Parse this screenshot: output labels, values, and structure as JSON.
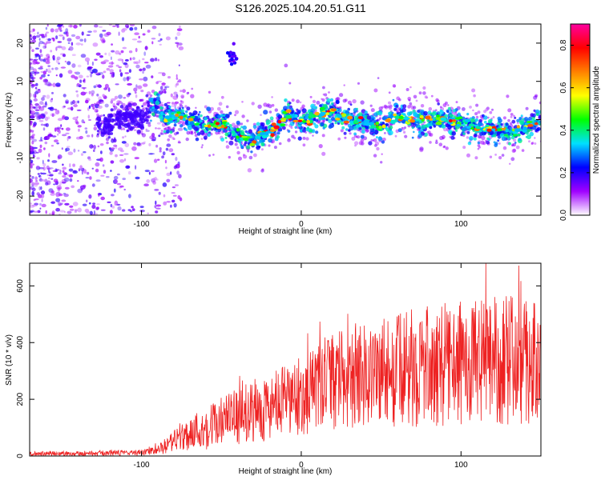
{
  "title": "S126.2025.104.20.51.G11",
  "chart_data": [
    {
      "type": "heatmap",
      "xlabel": "Height of straight line (km)",
      "ylabel": "Frequency (Hz)",
      "xlim": [
        -170,
        150
      ],
      "ylim": [
        -25,
        25
      ],
      "xticks": [
        -100,
        0,
        100
      ],
      "yticks": [
        -20,
        -10,
        0,
        10,
        20
      ],
      "ridge": {
        "x": [
          -125,
          -110,
          -100,
          -92,
          -85,
          -75,
          -60,
          -50,
          -40,
          -30,
          -20,
          -15,
          -10,
          -5,
          0,
          10,
          20,
          30,
          40,
          50,
          60,
          70,
          80,
          90,
          100,
          110,
          120,
          130,
          140,
          148
        ],
        "freq": [
          -2,
          1,
          0,
          5,
          0,
          1,
          -2,
          -1,
          -4,
          -5,
          -3,
          -2,
          1,
          1,
          -1,
          1,
          2,
          0,
          -1,
          -2,
          1,
          0,
          0,
          0,
          -1,
          -2,
          -3,
          -3,
          -2,
          0
        ]
      },
      "colorbar": {
        "label": "Normalized spectral amplitude",
        "range": [
          0,
          0.9
        ],
        "ticks": [
          "0.0",
          "0.2",
          "0.4",
          "0.6",
          "0.8"
        ],
        "colors": [
          "#ffffff",
          "#a000ff",
          "#0000ff",
          "#00e0ff",
          "#00ff00",
          "#ffff00",
          "#ff8000",
          "#ff0000",
          "#ff00a0"
        ]
      }
    },
    {
      "type": "line",
      "xlabel": "Height of straight line (km)",
      "ylabel": "SNR (10 * v/v)",
      "xlim": [
        -170,
        150
      ],
      "ylim": [
        0,
        680
      ],
      "xticks": [
        -100,
        0,
        100
      ],
      "yticks": [
        0,
        200,
        400,
        600
      ],
      "color": "#ee2222",
      "envelope": {
        "x": [
          -170,
          -120,
          -100,
          -90,
          -80,
          -70,
          -60,
          -50,
          -40,
          -30,
          -20,
          -10,
          0,
          10,
          20,
          30,
          40,
          50,
          60,
          70,
          80,
          90,
          100,
          110,
          120,
          130,
          140,
          150
        ],
        "mean": [
          8,
          10,
          12,
          20,
          50,
          80,
          100,
          120,
          140,
          160,
          170,
          190,
          210,
          240,
          260,
          280,
          290,
          300,
          300,
          310,
          320,
          320,
          330,
          330,
          340,
          340,
          340,
          330
        ],
        "spread": [
          8,
          10,
          10,
          15,
          40,
          60,
          80,
          90,
          100,
          110,
          120,
          130,
          140,
          160,
          170,
          180,
          190,
          200,
          200,
          210,
          210,
          220,
          220,
          220,
          230,
          230,
          230,
          220
        ]
      }
    }
  ]
}
